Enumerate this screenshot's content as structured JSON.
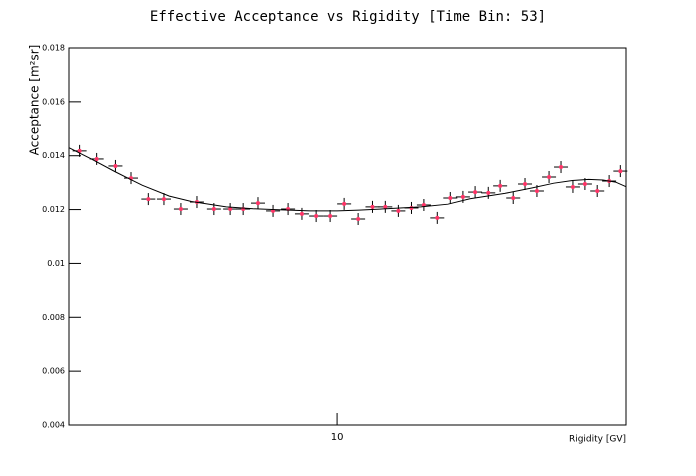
{
  "chart_data": {
    "type": "scatter",
    "title": "Effective Acceptance vs Rigidity [Time Bin: 53]",
    "x_label": "Rigidity [GV]",
    "y_label": "Acceptance [m²sr]",
    "log_x": true,
    "xlim": [
      1.09,
      109
    ],
    "xticks": [
      10
    ],
    "ylim": [
      0.004,
      0.018
    ],
    "yticks": [
      0.004,
      0.006,
      0.008,
      0.01,
      0.012,
      0.014,
      0.016,
      0.018
    ],
    "series": [
      {
        "color": "#ff3366",
        "style": "markers",
        "x": [
          1.19,
          1.37,
          1.6,
          1.82,
          2.1,
          2.39,
          2.75,
          3.14,
          3.61,
          4.13,
          4.6,
          5.2,
          5.89,
          6.67,
          7.48,
          8.41,
          9.44,
          10.6,
          11.9,
          13.4,
          14.9,
          16.6,
          18.5,
          20.5,
          22.9,
          25.5,
          28.3,
          31.3,
          34.9,
          38.5,
          42.9,
          47.3,
          52.2,
          57.7,
          63.7,
          70.3,
          77.6,
          85.9,
          94.8,
          104
        ],
        "values": [
          0.01418,
          0.01388,
          0.01362,
          0.01317,
          0.01239,
          0.01239,
          0.01202,
          0.01228,
          0.01202,
          0.01202,
          0.01202,
          0.01224,
          0.01195,
          0.01202,
          0.01184,
          0.01176,
          0.01176,
          0.01221,
          0.01165,
          0.0121,
          0.0121,
          0.01195,
          0.01206,
          0.01217,
          0.01169,
          0.01243,
          0.01247,
          0.01265,
          0.01262,
          0.01288,
          0.01243,
          0.01295,
          0.01269,
          0.01321,
          0.01358,
          0.01284,
          0.01295,
          0.01269,
          0.01306,
          0.01343
        ]
      },
      {
        "color": "#000000",
        "style": "line",
        "x": [
          1.09,
          1.3,
          1.6,
          2,
          2.5,
          3,
          4,
          5,
          6,
          8,
          10,
          12,
          15,
          20,
          25,
          30,
          40,
          50,
          60,
          70,
          80,
          90,
          100,
          109
        ],
        "values": [
          0.0143,
          0.0139,
          0.0134,
          0.0129,
          0.0125,
          0.0123,
          0.0121,
          0.01203,
          0.012,
          0.01195,
          0.01195,
          0.01198,
          0.01203,
          0.0121,
          0.0122,
          0.0124,
          0.0126,
          0.0128,
          0.01298,
          0.01308,
          0.01312,
          0.0131,
          0.01302,
          0.01285
        ]
      }
    ]
  }
}
